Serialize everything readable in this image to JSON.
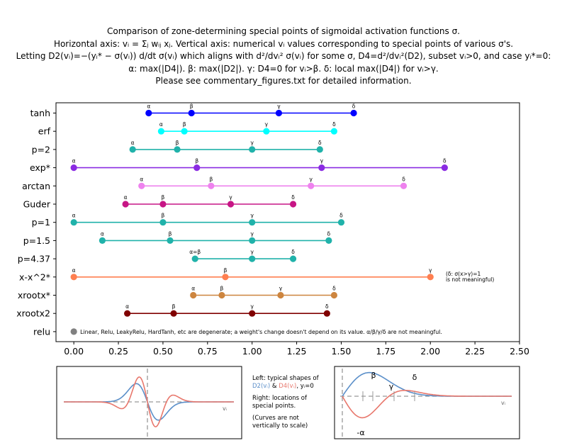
{
  "title": {
    "line1": "Comparison of zone-determining special points of sigmoidal activation functions σ.",
    "line2": "Horizontal axis: vᵢ = Σⱼ wᵢⱼ xⱼ.  Vertical axis: numerical vᵢ values corresponding to special points of various σ's.",
    "line3": "Letting D2(vᵢ)=−(yᵢ* − σ(vᵢ)) d/dt σ(vᵢ) which aligns with d²/dvᵢ² σ(vᵢ) for some σ, D4=d²/dvᵢ²(D2), subset vᵢ>0, and case yᵢ*=0:",
    "line4": "α: max(|D4|).   β: max(|D2|).   γ: D4=0 for vᵢ>β.   δ: local max(|D4|) for vᵢ>γ.",
    "line5": "Please see commentary_figures.txt for detailed information."
  },
  "chart_data": {
    "type": "scatter",
    "xlim": [
      -0.1,
      2.5
    ],
    "xticks": [
      "0.00",
      "0.25",
      "0.50",
      "0.75",
      "1.00",
      "1.25",
      "1.50",
      "1.75",
      "2.00",
      "2.25",
      "2.50"
    ],
    "xtick_values": [
      0,
      0.25,
      0.5,
      0.75,
      1.0,
      1.25,
      1.5,
      1.75,
      2.0,
      2.25,
      2.5
    ],
    "grid": false,
    "series": [
      {
        "name": "tanh",
        "color": "#0000ff",
        "x": [
          0.42,
          0.66,
          1.15,
          1.57
        ],
        "labels": [
          "α",
          "β",
          "γ",
          "δ"
        ]
      },
      {
        "name": "erf",
        "color": "#00ffff",
        "x": [
          0.49,
          0.62,
          1.08,
          1.46
        ],
        "labels": [
          "α",
          "β",
          "γ",
          "δ"
        ]
      },
      {
        "name": "p=2",
        "color": "#20b2aa",
        "x": [
          0.33,
          0.58,
          1.0,
          1.38
        ],
        "labels": [
          "α",
          "β",
          "γ",
          "δ"
        ]
      },
      {
        "name": "exp*",
        "color": "#8a2be2",
        "x": [
          0.0,
          0.69,
          1.39,
          2.08
        ],
        "labels": [
          "α",
          "β",
          "γ",
          "δ"
        ]
      },
      {
        "name": "arctan",
        "color": "#ee82ee",
        "x": [
          0.38,
          0.77,
          1.33,
          1.85
        ],
        "labels": [
          "α",
          "β",
          "γ",
          "δ"
        ]
      },
      {
        "name": "Guder",
        "color": "#c71585",
        "x": [
          0.29,
          0.5,
          0.88,
          1.23
        ],
        "labels": [
          "α",
          "β",
          "γ",
          "δ"
        ]
      },
      {
        "name": "p=1",
        "color": "#20b2aa",
        "x": [
          0.0,
          0.5,
          1.0,
          1.5
        ],
        "labels": [
          "α",
          "β",
          "γ",
          "δ"
        ]
      },
      {
        "name": "p=1.5",
        "color": "#20b2aa",
        "x": [
          0.16,
          0.54,
          1.0,
          1.43
        ],
        "labels": [
          "α",
          "β",
          "γ",
          "δ"
        ]
      },
      {
        "name": "p=4.37",
        "color": "#20b2aa",
        "x": [
          0.68,
          1.0,
          1.23
        ],
        "labels": [
          "α=β",
          "γ",
          "δ"
        ]
      },
      {
        "name": "x-x^2*",
        "color": "#ff7f50",
        "x": [
          0.0,
          0.85,
          2.0
        ],
        "labels": [
          "α",
          "β",
          "γ"
        ]
      },
      {
        "name": "xrootx*",
        "color": "#cd853f",
        "x": [
          0.67,
          0.83,
          1.16,
          1.46
        ],
        "labels": [
          "α",
          "β",
          "γ",
          "δ"
        ]
      },
      {
        "name": "xrootx2",
        "color": "#800000",
        "x": [
          0.3,
          0.56,
          1.0,
          1.42
        ],
        "labels": [
          "α",
          "β",
          "γ",
          "δ"
        ]
      },
      {
        "name": "relu",
        "color": "#808080",
        "x": [
          0.0
        ],
        "labels": [
          ""
        ]
      }
    ],
    "annotations": {
      "xx2_line1": "(δ: σ(x>γ)=1",
      "xx2_line2": "is not meaningful)",
      "relu_note": "Linear, Relu, LeakyRelu, HardTanh, etc are degenerate; a weight's change doesn't depend on its value. α/β/γ/δ are not meaningful."
    }
  },
  "inset_left": {
    "x_label": "vᵢ"
  },
  "inset_right": {
    "x_label": "vᵢ",
    "labels": [
      "β",
      "γ",
      "δ",
      "-α"
    ]
  },
  "legend_note": {
    "line1": "Left: typical shapes of",
    "d2": "D2(vᵢ)",
    "amp": " & ",
    "d4": "D4(vᵢ)",
    "case": ", yᵢ=0",
    "line3": "Right: locations of",
    "line4": "special points.",
    "line5": "(Curves are not",
    "line6": "vertically to scale)"
  },
  "colors": {
    "d2": "#5b8fc9",
    "d4": "#e8776c"
  }
}
